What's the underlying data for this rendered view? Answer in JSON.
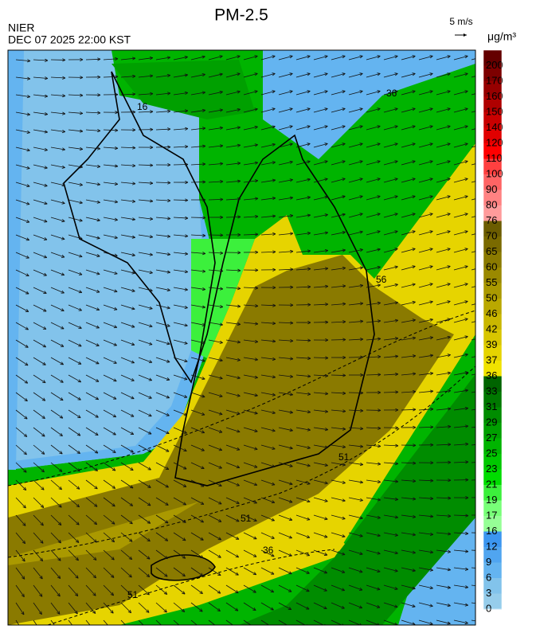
{
  "header": {
    "title": "PM-2.5",
    "agency": "NIER",
    "datetime": "DEC 07 2025 22:00 KST",
    "wind_reference": "5 m/s",
    "unit": "μg/m³"
  },
  "colorbar": {
    "labels": [
      "200",
      "170",
      "160",
      "150",
      "140",
      "120",
      "110",
      "100",
      "90",
      "80",
      "76",
      "70",
      "65",
      "60",
      "55",
      "50",
      "46",
      "42",
      "39",
      "37",
      "36",
      "33",
      "31",
      "29",
      "27",
      "25",
      "23",
      "21",
      "19",
      "17",
      "16",
      "12",
      "9",
      "6",
      "3",
      "0"
    ],
    "colors": [
      "#640000",
      "#7d0000",
      "#960000",
      "#af0000",
      "#c80000",
      "#e10000",
      "#ff0000",
      "#ff4040",
      "#ff6464",
      "#ff8282",
      "#ff9b9b",
      "#6b5c00",
      "#7a6a00",
      "#8a7a00",
      "#9a8900",
      "#aa9900",
      "#baa800",
      "#c9b700",
      "#d8c600",
      "#e6d400",
      "#f0e200",
      "#006400",
      "#007800",
      "#008c00",
      "#00a000",
      "#00b400",
      "#00c800",
      "#00dc00",
      "#3cf03c",
      "#78ff78",
      "#96ff96",
      "#3c96f0",
      "#50a5f0",
      "#64b4f0",
      "#82c3eb",
      "#96cdeb"
    ]
  },
  "contour_labels": [
    "16",
    "36",
    "51",
    "56",
    "51",
    "36",
    "51"
  ]
}
